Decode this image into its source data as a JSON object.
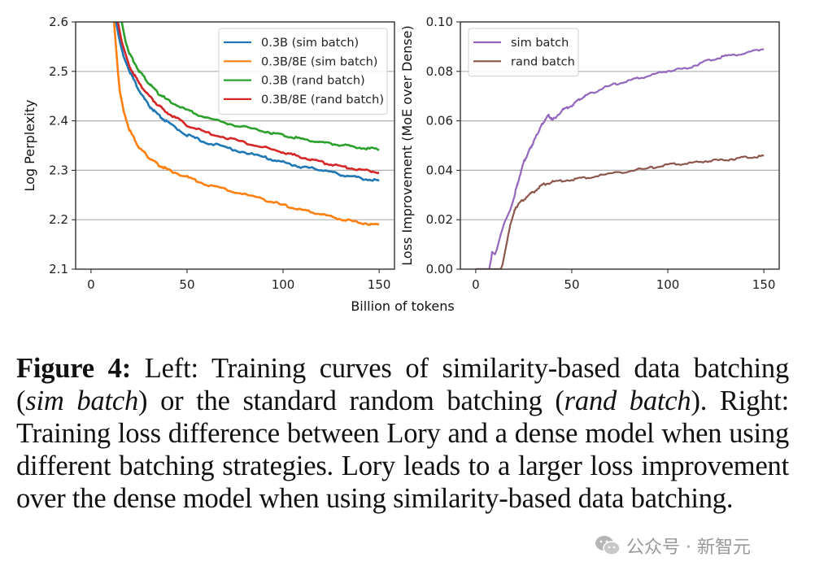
{
  "chart_data": [
    {
      "type": "line",
      "panel": "left",
      "title": "",
      "xlabel": "Billion of tokens",
      "ylabel": "Log Perplexity",
      "xlim": [
        -8,
        158
      ],
      "ylim": [
        2.1,
        2.6
      ],
      "xticks": [
        0,
        50,
        100,
        150
      ],
      "yticks": [
        2.1,
        2.2,
        2.3,
        2.4,
        2.5,
        2.6
      ],
      "ytick_labels": [
        "2.1",
        "2.2",
        "2.3",
        "2.4",
        "2.5",
        "2.6"
      ],
      "grid": "horizontal",
      "legend_position": "top-right",
      "series": [
        {
          "name": "0.3B (sim batch)",
          "color": "#1f77b4",
          "x": [
            13,
            15,
            17,
            20,
            25,
            30,
            35,
            40,
            50,
            60,
            75,
            90,
            100,
            110,
            120,
            130,
            140,
            150
          ],
          "y": [
            2.6,
            2.56,
            2.53,
            2.5,
            2.46,
            2.43,
            2.41,
            2.395,
            2.37,
            2.355,
            2.34,
            2.325,
            2.315,
            2.305,
            2.3,
            2.29,
            2.283,
            2.277
          ]
        },
        {
          "name": "0.3B/8E (sim batch)",
          "color": "#ff7f0e",
          "x": [
            12,
            13,
            14,
            15,
            17,
            20,
            25,
            30,
            35,
            40,
            50,
            60,
            75,
            90,
            100,
            110,
            120,
            130,
            140,
            150
          ],
          "y": [
            2.6,
            2.55,
            2.5,
            2.46,
            2.42,
            2.38,
            2.345,
            2.325,
            2.31,
            2.3,
            2.285,
            2.27,
            2.255,
            2.24,
            2.228,
            2.218,
            2.21,
            2.2,
            2.193,
            2.188
          ]
        },
        {
          "name": "0.3B (rand batch)",
          "color": "#2ca02c",
          "x": [
            16,
            18,
            20,
            25,
            30,
            35,
            40,
            50,
            60,
            75,
            90,
            100,
            110,
            120,
            130,
            140,
            150
          ],
          "y": [
            2.6,
            2.56,
            2.535,
            2.5,
            2.475,
            2.455,
            2.44,
            2.42,
            2.405,
            2.39,
            2.378,
            2.37,
            2.362,
            2.355,
            2.35,
            2.345,
            2.34
          ]
        },
        {
          "name": "0.3B/8E (rand batch)",
          "color": "#d62728",
          "x": [
            14,
            16,
            18,
            20,
            25,
            30,
            35,
            40,
            50,
            60,
            75,
            90,
            100,
            110,
            120,
            130,
            140,
            150
          ],
          "y": [
            2.6,
            2.56,
            2.535,
            2.51,
            2.475,
            2.45,
            2.43,
            2.415,
            2.39,
            2.375,
            2.36,
            2.345,
            2.335,
            2.325,
            2.315,
            2.307,
            2.3,
            2.295
          ]
        }
      ]
    },
    {
      "type": "line",
      "panel": "right",
      "title": "",
      "xlabel": "Billion of tokens",
      "ylabel": "Loss Improvement (MoE over Dense)",
      "xlim": [
        -8,
        158
      ],
      "ylim": [
        0.0,
        0.1
      ],
      "xticks": [
        0,
        50,
        100,
        150
      ],
      "yticks": [
        0.0,
        0.02,
        0.04,
        0.06,
        0.08,
        0.1
      ],
      "ytick_labels": [
        "0.00",
        "0.02",
        "0.04",
        "0.06",
        "0.08",
        "0.10"
      ],
      "grid": "horizontal",
      "legend_position": "top-left",
      "series": [
        {
          "name": "sim batch",
          "color": "#9467bd",
          "x": [
            0,
            7,
            8,
            8.5,
            10,
            11,
            13,
            15,
            18,
            20,
            22,
            25,
            28,
            30,
            33,
            35,
            38,
            40,
            45,
            50,
            55,
            60,
            70,
            80,
            90,
            100,
            110,
            120,
            130,
            140,
            150
          ],
          "y": [
            0,
            0,
            0.004,
            0.007,
            0.006,
            0.008,
            0.014,
            0.019,
            0.024,
            0.029,
            0.035,
            0.043,
            0.048,
            0.051,
            0.056,
            0.059,
            0.062,
            0.06,
            0.064,
            0.066,
            0.069,
            0.071,
            0.074,
            0.076,
            0.078,
            0.08,
            0.081,
            0.084,
            0.086,
            0.087,
            0.089
          ]
        },
        {
          "name": "rand batch",
          "color": "#8c564b",
          "x": [
            0,
            13,
            14,
            16,
            18,
            20,
            22,
            25,
            30,
            35,
            40,
            50,
            60,
            75,
            90,
            100,
            110,
            120,
            130,
            140,
            150
          ],
          "y": [
            0,
            0,
            0.002,
            0.01,
            0.018,
            0.023,
            0.026,
            0.028,
            0.031,
            0.034,
            0.035,
            0.036,
            0.037,
            0.039,
            0.0405,
            0.042,
            0.0425,
            0.0435,
            0.044,
            0.045,
            0.0455
          ]
        }
      ]
    }
  ],
  "caption": {
    "label": "Figure 4:",
    "parts": [
      {
        "text": " Left: Training curves of similarity-based data batching (",
        "italic": false
      },
      {
        "text": "sim batch",
        "italic": true
      },
      {
        "text": ") or the standard random batching (",
        "italic": false
      },
      {
        "text": "rand batch",
        "italic": true
      },
      {
        "text": "). Right: Training loss difference between Lory and a dense model when using different batching strategies. Lory leads to a larger loss improvement over the dense model when using similarity-based data batching.",
        "italic": false
      }
    ]
  },
  "watermark": {
    "icon": "wechat-icon",
    "text": "公众号 · 新智元"
  }
}
